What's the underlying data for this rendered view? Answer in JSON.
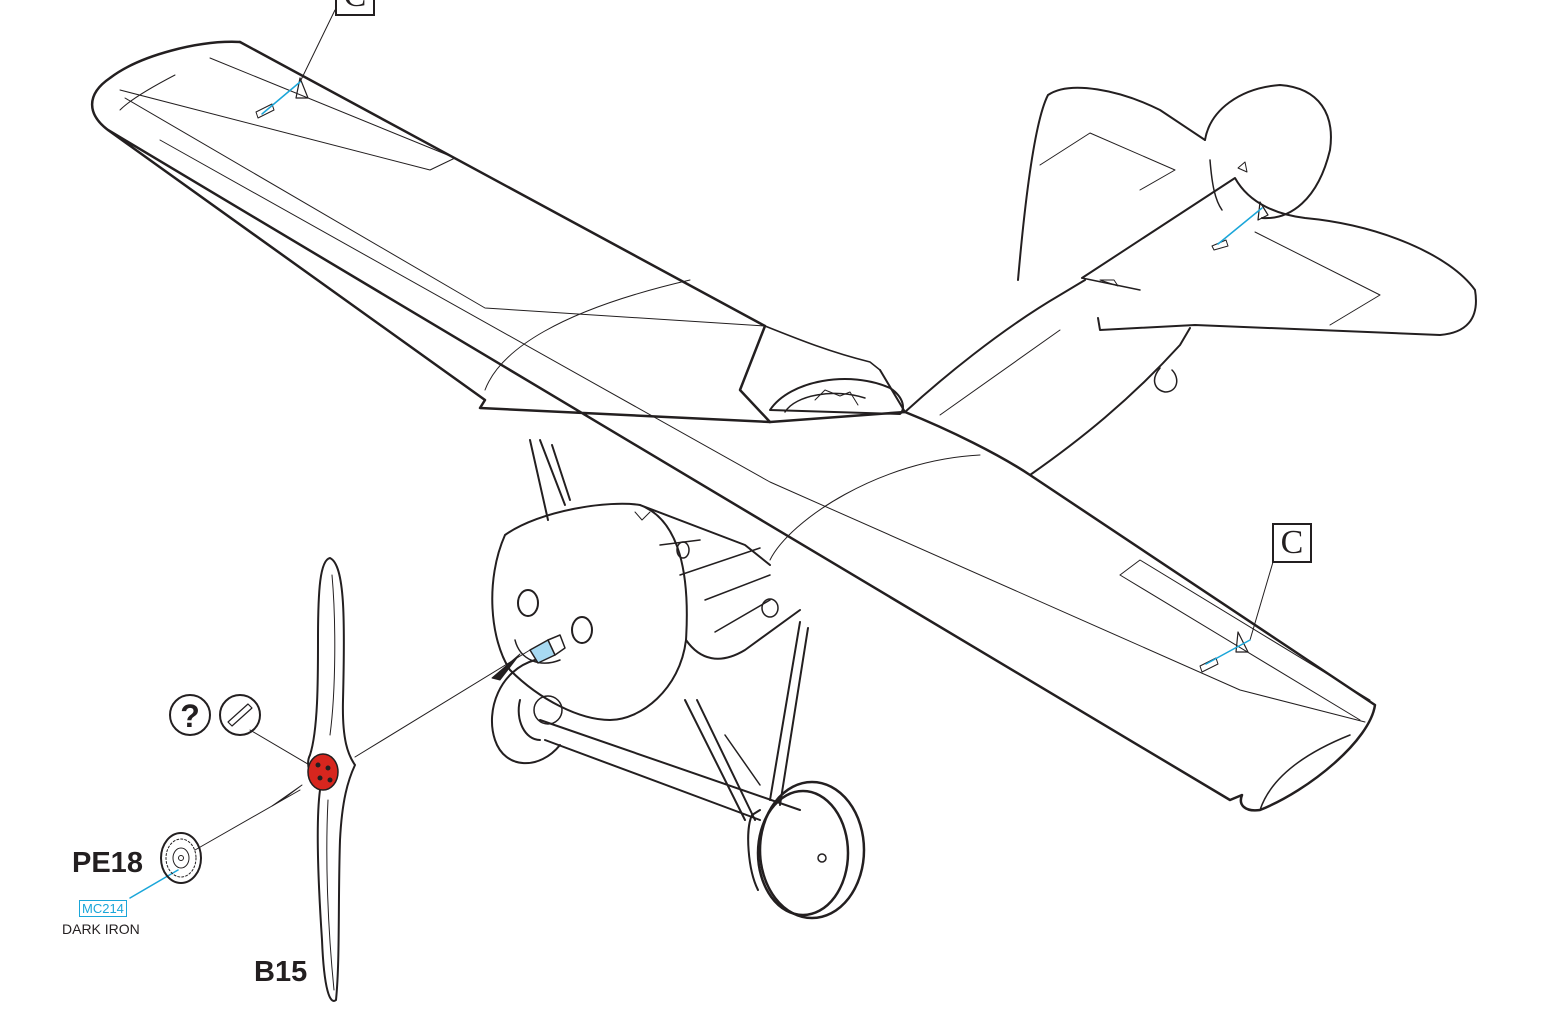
{
  "callouts": {
    "ref_top": "C",
    "ref_right": "C"
  },
  "parts": {
    "photoetch_part": "PE18",
    "propeller_part": "B15"
  },
  "paint": {
    "code": "MC214",
    "name": "DARK IRON"
  },
  "symbols": {
    "optional_icon": "question-mark-circle-icon",
    "glue_icon": "glue-brush-circle-icon"
  },
  "colors": {
    "line": "#231f20",
    "paint_callout": "#1aa6d9",
    "highlight": "#d7261e"
  }
}
